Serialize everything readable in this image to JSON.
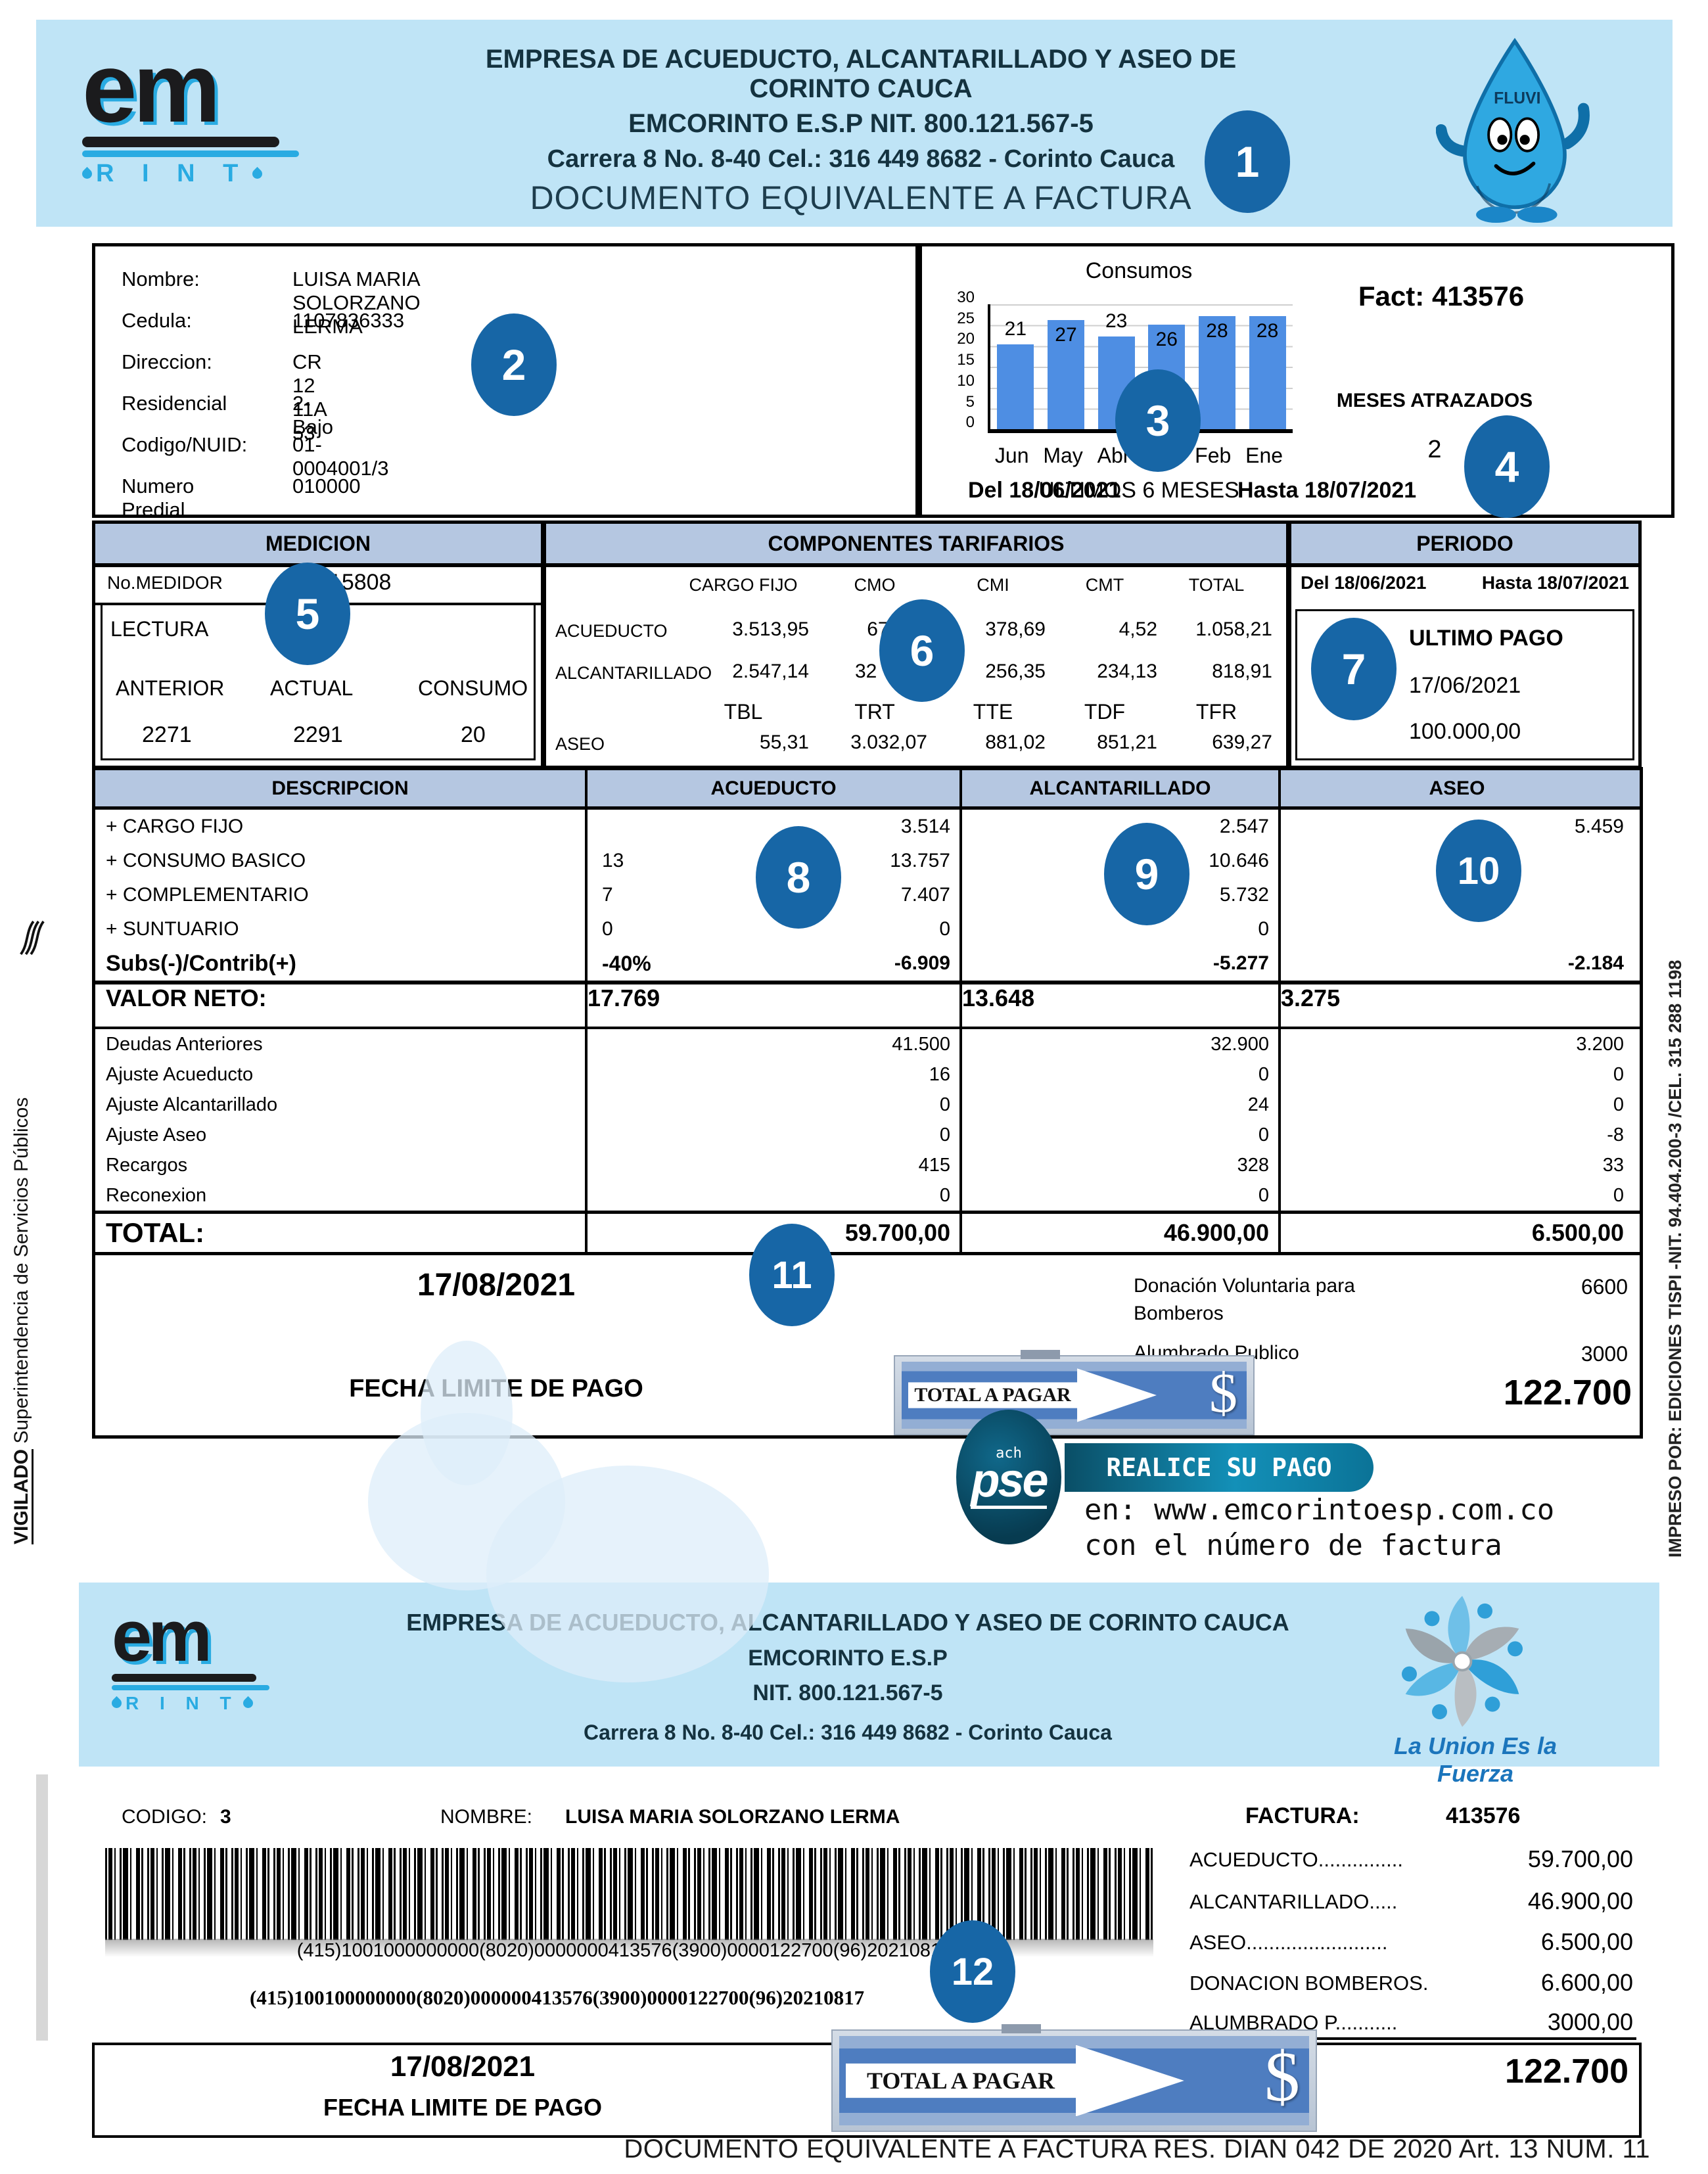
{
  "header": {
    "line1": "EMPRESA DE ACUEDUCTO, ALCANTARILLADO Y ASEO DE CORINTO CAUCA",
    "line2": "EMCORINTO E.S.P  NIT. 800.121.567-5",
    "line3": "Carrera 8 No. 8-40 Cel.: 316 449 8682 - Corinto Cauca",
    "line4": "DOCUMENTO EQUIVALENTE A FACTURA"
  },
  "brand": {
    "logo_text": "em",
    "logo_sub": "R I N T",
    "mascot_label": "FLUVI"
  },
  "customer": {
    "rows": [
      {
        "label": "Nombre:",
        "value": "LUISA MARIA SOLORZANO LERMA"
      },
      {
        "label": "Cedula:",
        "value": "1107836333"
      },
      {
        "label": "Direccion:",
        "value": "CR 12 11A 53"
      },
      {
        "label": "Residencial",
        "value": "2-Bajo"
      },
      {
        "label": "Codigo/NUID:",
        "value": "01-0004001/3"
      },
      {
        "label": "Numero Predial",
        "value": "010000"
      }
    ]
  },
  "consumos": {
    "fact_label": "Fact:",
    "fact_value": "413576",
    "atrasados_label": "MESES ATRAZADOS",
    "atrasados_value": "2",
    "del": "Del 18/06/2021",
    "hasta": "Hasta 18/07/2021"
  },
  "chart_data": {
    "type": "bar",
    "title": "Consumos",
    "categories": [
      "Jun",
      "May",
      "Abr",
      "Mar",
      "Feb",
      "Ene"
    ],
    "values": [
      21,
      27,
      23,
      26,
      28,
      28
    ],
    "xlabel": "ULTIMOS 6 MESES",
    "ylabel": "",
    "ylim": [
      0,
      30
    ],
    "yticks": [
      0,
      5,
      10,
      15,
      20,
      25,
      30
    ],
    "grid": true,
    "legend": "none",
    "bar_color": "#4e8ee3",
    "label_positions": [
      "above",
      "inside",
      "above",
      "inside",
      "inside",
      "inside"
    ]
  },
  "medicion": {
    "title": "MEDICION",
    "medidor_label": "No.MEDIDOR",
    "medidor_value": "c015808",
    "lectura_label": "LECTURA",
    "cols": [
      "ANTERIOR",
      "ACTUAL",
      "CONSUMO"
    ],
    "vals": [
      "2271",
      "2291",
      "20"
    ]
  },
  "componentes": {
    "title": "COMPONENTES TARIFARIOS",
    "cols": [
      "CARGO FIJO",
      "CMO",
      "CMI",
      "CMT",
      "TOTAL"
    ],
    "rows": [
      {
        "label": "ACUEDUCTO",
        "vals": [
          "3.513,95",
          "675,00",
          "378,69",
          "4,52",
          "1.058,21"
        ]
      },
      {
        "label": "ALCANTARILLADO",
        "vals": [
          "2.547,14",
          "32",
          "256,35",
          "234,13",
          "818,91"
        ]
      },
      {
        "label": "",
        "vals": [
          "TBL",
          "TRT",
          "TTE",
          "TDF",
          "TFR"
        ]
      },
      {
        "label": "ASEO",
        "vals": [
          "55,31",
          "3.032,07",
          "881,02",
          "851,21",
          "639,27"
        ]
      }
    ]
  },
  "periodo": {
    "title": "PERIODO",
    "del": "Del 18/06/2021",
    "hasta": "Hasta 18/07/2021",
    "ultimo_pago_label": "ULTIMO PAGO",
    "ultimo_pago_fecha": "17/06/2021",
    "ultimo_pago_valor": "100.000,00"
  },
  "charges": {
    "cols": [
      "DESCRIPCION",
      "ACUEDUCTO",
      "ALCANTARILLADO",
      "ASEO"
    ],
    "rows": [
      {
        "desc": "+ CARGO FIJO",
        "qty": "",
        "acu": "3.514",
        "alc": "2.547",
        "aseo": "5.459"
      },
      {
        "desc": "+ CONSUMO BASICO",
        "qty": "13",
        "acu": "13.757",
        "alc": "10.646",
        "aseo": ""
      },
      {
        "desc": "+ COMPLEMENTARIO",
        "qty": "7",
        "acu": "7.407",
        "alc": "5.732",
        "aseo": ""
      },
      {
        "desc": "+ SUNTUARIO",
        "qty": "0",
        "acu": "0",
        "alc": "0",
        "aseo": ""
      },
      {
        "desc": "Subs(-)/Contrib(+)",
        "qty": "-40%",
        "acu": "-6.909",
        "alc": "-5.277",
        "aseo": "-2.184"
      }
    ],
    "valor_neto": {
      "desc": "VALOR NETO:",
      "acu": "17.769",
      "alc": "13.648",
      "aseo": "3.275"
    },
    "subrows": [
      {
        "desc": "Deudas Anteriores",
        "acu": "41.500",
        "alc": "32.900",
        "aseo": "3.200"
      },
      {
        "desc": "Ajuste Acueducto",
        "acu": "16",
        "alc": "0",
        "aseo": "0"
      },
      {
        "desc": "Ajuste Alcantarillado",
        "acu": "0",
        "alc": "24",
        "aseo": "0"
      },
      {
        "desc": "Ajuste Aseo",
        "acu": "0",
        "alc": "0",
        "aseo": "-8"
      },
      {
        "desc": "Recargos",
        "acu": "415",
        "alc": "328",
        "aseo": "33"
      },
      {
        "desc": "Reconexion",
        "acu": "0",
        "alc": "0",
        "aseo": "0"
      }
    ],
    "total": {
      "desc": "TOTAL:",
      "acu": "59.700,00",
      "alc": "46.900,00",
      "aseo": "6.500,00"
    }
  },
  "payment": {
    "fecha_limite": "17/08/2021",
    "fecha_limite_label": "FECHA LIMITE DE PAGO",
    "total_a_pagar_label": "TOTAL A PAGAR",
    "currency": "$",
    "donacion_line1": "Donación Voluntaria para",
    "donacion_line2": "Bomberos",
    "donacion_value": "6600",
    "alumbrado_label": "Alumbrado Publico",
    "alumbrado_value": "3000",
    "total_value": "122.700"
  },
  "pse": {
    "brand_small": "ach",
    "brand": "pse",
    "banner": "REALICE SU PAGO",
    "line1": "en: www.emcorintoesp.com.co",
    "line2": "con el número de factura"
  },
  "header2": {
    "line1": "EMPRESA DE ACUEDUCTO, ALCANTARILLADO Y ASEO DE CORINTO CAUCA",
    "line2": "EMCORINTO E.S.P",
    "line3": "NIT. 800.121.567-5",
    "line4": "Carrera 8 No. 8-40 Cel.: 316 449 8682 - Corinto Cauca",
    "slogan": "La Union Es la Fuerza"
  },
  "stub": {
    "codigo_label": "CODIGO:",
    "codigo": "3",
    "nombre_label": "NOMBRE:",
    "nombre": "LUISA MARIA SOLORZANO LERMA",
    "factura_label": "FACTURA:",
    "factura": "413576",
    "barcode_text1": "(415)1001000000000(8020)0000000413576(3900)0000122700(96)20210817",
    "barcode_text2": "(415)100100000000(8020)000000413576(3900)0000122700(96)20210817",
    "items": [
      {
        "label": "ACUEDUCTO...............",
        "value": "59.700,00"
      },
      {
        "label": "ALCANTARILLADO.....",
        "value": "46.900,00"
      },
      {
        "label": "ASEO.........................",
        "value": "6.500,00"
      },
      {
        "label": "DONACION BOMBEROS.",
        "value": "6.600,00"
      },
      {
        "label": "ALUMBRADO P...........",
        "value": "3000,00"
      }
    ],
    "fecha_limite": "17/08/2021",
    "fecha_limite_label": "FECHA LIMITE DE PAGO",
    "total_value": "122.700"
  },
  "footer": "DOCUMENTO EQUIVALENTE A FACTURA RES. DIAN 042 DE 2020 Art. 13 NUM. 11",
  "vigilado": {
    "bold": "VIGILADO",
    "rest": "Superintendencia de Servicios Públicos"
  },
  "impreso": "IMPRESO POR: EDICIONES TISPI -NIT. 94.404.200-3  /CEL. 315 288 1198",
  "annotations": [
    "1",
    "2",
    "3",
    "4",
    "5",
    "6",
    "7",
    "8",
    "9",
    "10",
    "11",
    "12"
  ],
  "colors": {
    "header_bg": "#bfe4f6",
    "table_header_bg": "#b5c7e1",
    "annotation_blue": "#1766a6",
    "bar_blue": "#4e8ee3",
    "accent_blue": "#29abe2",
    "navy_text": "#14323f",
    "pse_teal": "#0b5570",
    "slogan_blue": "#1b75bc"
  }
}
